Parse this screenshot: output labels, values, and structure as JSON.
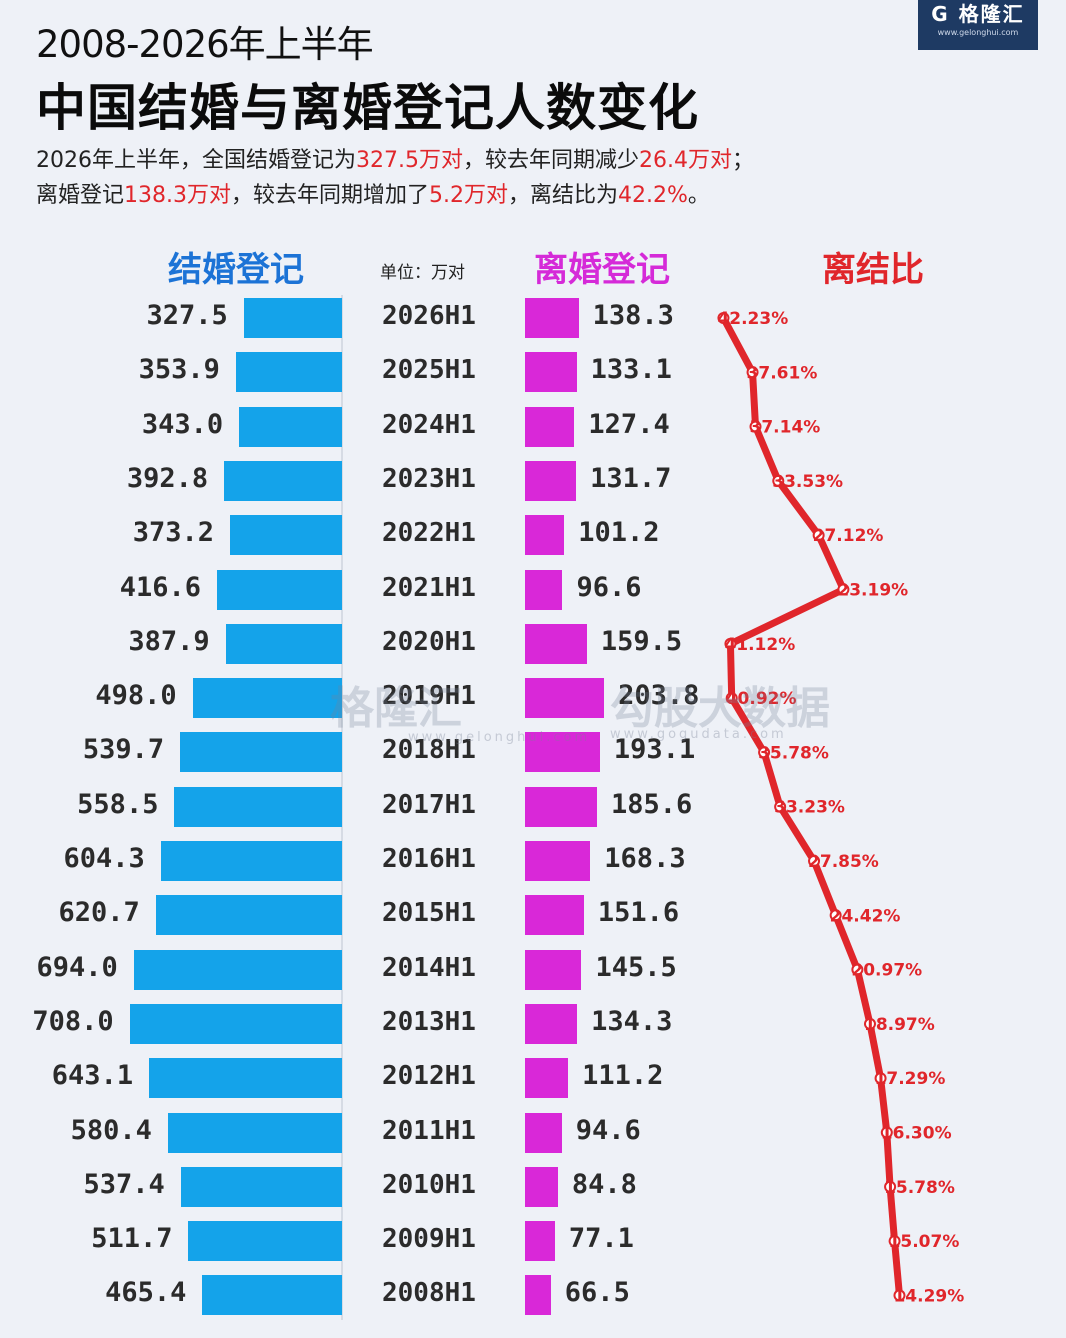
{
  "header": {
    "subtitle": "2008-2026年上半年",
    "title": "中国结婚与离婚登记人数变化",
    "summary_line1": [
      {
        "text": "2026年上半年，全国结婚登记为",
        "red": false
      },
      {
        "text": "327.5万对",
        "red": true
      },
      {
        "text": "，较去年同期减少",
        "red": false
      },
      {
        "text": "26.4万对",
        "red": true
      },
      {
        "text": "；",
        "red": false
      }
    ],
    "summary_line2": [
      {
        "text": "离婚登记",
        "red": false
      },
      {
        "text": "138.3万对",
        "red": true
      },
      {
        "text": "，较去年同期增加了",
        "red": false
      },
      {
        "text": "5.2万对",
        "red": true
      },
      {
        "text": "，离结比为",
        "red": false
      },
      {
        "text": "42.2%",
        "red": true
      },
      {
        "text": "。",
        "red": false
      }
    ]
  },
  "logo": {
    "name": "格隆汇",
    "url": "www.gelonghui.com"
  },
  "watermark": {
    "left": "格隆汇",
    "left_url": "www.gelonghui.com",
    "right": "勾股大数据",
    "right_url": "www.gogudata.com"
  },
  "colors": {
    "marriage": "#14a3ea",
    "divorce": "#d928d8",
    "ratio": "#e0262b"
  },
  "chart_data": {
    "type": "bar",
    "unit": "单位：万对",
    "categories": [
      "2026H1",
      "2025H1",
      "2024H1",
      "2023H1",
      "2022H1",
      "2021H1",
      "2020H1",
      "2019H1",
      "2018H1",
      "2017H1",
      "2016H1",
      "2015H1",
      "2014H1",
      "2013H1",
      "2012H1",
      "2011H1",
      "2010H1",
      "2009H1",
      "2008H1"
    ],
    "series": [
      {
        "name": "结婚登记",
        "values": [
          327.5,
          353.9,
          343.0,
          392.8,
          373.2,
          416.6,
          387.9,
          498.0,
          539.7,
          558.5,
          604.3,
          620.7,
          694.0,
          708.0,
          643.1,
          580.4,
          537.4,
          511.7,
          465.4
        ],
        "labels": [
          "327.5",
          "353.9",
          "343.0",
          "392.8",
          "373.2",
          "416.6",
          "387.9",
          "498.0",
          "539.7",
          "558.5",
          "604.3",
          "620.7",
          "694.0",
          "708.0",
          "643.1",
          "580.4",
          "537.4",
          "511.7",
          "465.4"
        ]
      },
      {
        "name": "离婚登记",
        "values": [
          138.3,
          133.1,
          127.4,
          131.7,
          101.2,
          96.6,
          159.5,
          203.8,
          193.1,
          185.6,
          168.3,
          151.6,
          145.5,
          134.3,
          111.2,
          94.6,
          84.8,
          77.1,
          66.5
        ],
        "labels": [
          "138.3",
          "133.1",
          "127.4",
          "131.7",
          "101.2",
          "96.6",
          "159.5",
          "203.8",
          "193.1",
          "185.6",
          "168.3",
          "151.6",
          "145.5",
          "134.3",
          "111.2",
          "94.6",
          "84.8",
          "77.1",
          "66.5"
        ]
      },
      {
        "name": "离结比",
        "type": "line",
        "values": [
          42.23,
          37.61,
          37.14,
          33.53,
          27.12,
          23.19,
          41.12,
          40.92,
          35.78,
          33.23,
          27.85,
          24.42,
          20.97,
          18.97,
          17.29,
          16.3,
          15.78,
          15.07,
          14.29
        ],
        "labels": [
          "42.23%",
          "37.61%",
          "37.14%",
          "33.53%",
          "27.12%",
          "23.19%",
          "41.12%",
          "40.92%",
          "35.78%",
          "33.23%",
          "27.85%",
          "24.42%",
          "20.97%",
          "18.97%",
          "17.29%",
          "16.30%",
          "15.78%",
          "15.07%",
          "14.29%"
        ]
      }
    ]
  }
}
